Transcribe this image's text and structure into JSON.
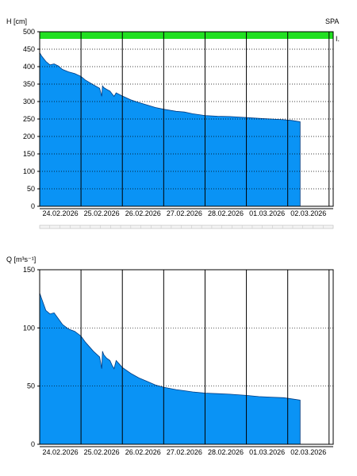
{
  "colors": {
    "area": "#0a93f5",
    "band": "#22e022",
    "grid": "#000000",
    "bg": "#ffffff"
  },
  "top": {
    "ylabel": "H [cm]",
    "tag": "SPA",
    "marker": "I."
  },
  "bottom": {
    "ylabel": "Q [m³s⁻¹]"
  },
  "chart_data": [
    {
      "type": "area",
      "ylabel": "H [cm]",
      "ylim": [
        0,
        500
      ],
      "yticks": [
        "0",
        "50",
        "100",
        "150",
        "200",
        "250",
        "300",
        "350",
        "400",
        "450",
        "500"
      ],
      "yticks_values": [
        0,
        50,
        100,
        150,
        200,
        250,
        300,
        350,
        400,
        450,
        500
      ],
      "xticks": [
        "24.02.2026",
        "25.02.2026",
        "26.02.2026",
        "27.02.2026",
        "28.02.2026",
        "01.03.2026",
        "02.03.2026"
      ],
      "xlim_days": [
        0,
        7.1
      ],
      "grid": true,
      "x_days": [
        0,
        0.05,
        0.15,
        0.25,
        0.35,
        0.45,
        0.55,
        0.7,
        0.85,
        1.0,
        1.1,
        1.2,
        1.3,
        1.45,
        1.5,
        1.52,
        1.55,
        1.62,
        1.7,
        1.75,
        1.8,
        1.85,
        1.9,
        2.0,
        2.2,
        2.4,
        2.6,
        2.8,
        3.0,
        3.3,
        3.5,
        3.7,
        4.0,
        4.3,
        4.6,
        5.0,
        5.3,
        5.6,
        5.9,
        6.1,
        6.3
      ],
      "values": [
        440,
        430,
        415,
        405,
        408,
        402,
        392,
        385,
        380,
        372,
        362,
        355,
        348,
        338,
        315,
        345,
        340,
        335,
        330,
        322,
        315,
        325,
        322,
        316,
        305,
        297,
        290,
        283,
        278,
        272,
        270,
        265,
        260,
        258,
        257,
        254,
        252,
        250,
        248,
        246,
        242
      ],
      "band_label_color": "#22e022"
    },
    {
      "type": "area",
      "ylabel": "Q [m³s⁻¹]",
      "ylim": [
        0,
        150
      ],
      "yticks": [
        "0",
        "50",
        "100",
        "150"
      ],
      "yticks_values": [
        0,
        50,
        100,
        150
      ],
      "xticks": [
        "24.02.2026",
        "25.02.2026",
        "26.02.2026",
        "27.02.2026",
        "28.02.2026",
        "01.03.2026",
        "02.03.2026"
      ],
      "xlim_days": [
        0,
        7.1
      ],
      "grid": true,
      "x_days": [
        0,
        0.05,
        0.15,
        0.25,
        0.35,
        0.45,
        0.55,
        0.7,
        0.85,
        1.0,
        1.1,
        1.2,
        1.3,
        1.45,
        1.5,
        1.52,
        1.55,
        1.62,
        1.7,
        1.75,
        1.8,
        1.85,
        1.9,
        2.0,
        2.2,
        2.4,
        2.6,
        2.8,
        3.0,
        3.3,
        3.5,
        3.7,
        4.0,
        4.3,
        4.6,
        5.0,
        5.3,
        5.6,
        5.9,
        6.1,
        6.3
      ],
      "values": [
        130,
        125,
        115,
        112,
        113,
        108,
        103,
        99,
        97,
        93,
        88,
        84,
        80,
        75,
        65,
        80,
        77,
        74,
        72,
        68,
        65,
        72,
        70,
        66,
        61,
        57,
        54,
        51,
        49,
        47,
        46,
        45,
        44,
        43.5,
        43,
        42,
        41,
        40.5,
        40,
        39,
        38
      ]
    }
  ]
}
